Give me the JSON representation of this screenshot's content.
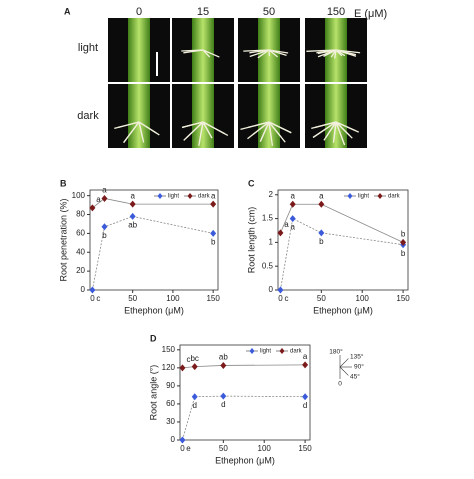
{
  "panel_a": {
    "panel_label": "A",
    "columns": [
      "0",
      "15",
      "50",
      "150"
    ],
    "unit": "E (μM)",
    "rows": [
      "light",
      "dark"
    ]
  },
  "chart_data": [
    {
      "type": "line",
      "panel_label": "B",
      "x_label": "Ethephon (μM)",
      "y_label": "Root penetration (%)",
      "x": [
        0,
        15,
        50,
        150
      ],
      "xlim": [
        -3,
        156
      ],
      "xticks": [
        0,
        50,
        100,
        150
      ],
      "ylim": [
        0,
        106
      ],
      "yticks": [
        0,
        20,
        40,
        60,
        80,
        100
      ],
      "series": [
        {
          "name": "light",
          "color": "#3b5bdb",
          "values": [
            0,
            67,
            78,
            60
          ],
          "letters": [
            "c",
            "b",
            "ab",
            "b"
          ]
        },
        {
          "name": "dark",
          "color": "#7b1a1a",
          "values": [
            87,
            97,
            91,
            91
          ],
          "letters": [
            "a",
            "a",
            "a",
            "a"
          ]
        }
      ]
    },
    {
      "type": "line",
      "panel_label": "C",
      "x_label": "Ethephon (μM)",
      "y_label": "Root length (cm)",
      "x": [
        0,
        15,
        50,
        150
      ],
      "xlim": [
        -3,
        156
      ],
      "xticks": [
        0,
        50,
        100,
        150
      ],
      "ylim": [
        0,
        2.1
      ],
      "yticks": [
        0,
        0.5,
        1,
        1.5,
        2
      ],
      "series": [
        {
          "name": "light",
          "color": "#3b5bdb",
          "values": [
            0,
            1.5,
            1.2,
            0.95
          ],
          "letters": [
            "c",
            "a",
            "b",
            "b"
          ]
        },
        {
          "name": "dark",
          "color": "#7b1a1a",
          "values": [
            1.2,
            1.8,
            1.8,
            1.0
          ],
          "letters": [
            "a",
            "a",
            "a",
            "b"
          ]
        }
      ]
    },
    {
      "type": "line",
      "panel_label": "D",
      "x_label": "Ethephon (μM)",
      "y_label": "Root angle (°)",
      "x": [
        0,
        15,
        50,
        150
      ],
      "xlim": [
        -3,
        156
      ],
      "xticks": [
        0,
        50,
        100,
        150
      ],
      "ylim": [
        0,
        158
      ],
      "yticks": [
        0,
        30,
        60,
        90,
        120,
        150
      ],
      "angle_key_labels": [
        "180°",
        "135°",
        "90°",
        "45°",
        "0"
      ],
      "series": [
        {
          "name": "light",
          "color": "#3b5bdb",
          "values": [
            0,
            72,
            73,
            72
          ],
          "letters": [
            "e",
            "d",
            "d",
            "d"
          ]
        },
        {
          "name": "dark",
          "color": "#7b1a1a",
          "values": [
            120,
            122,
            124,
            125
          ],
          "letters": [
            "c",
            "bc",
            "ab",
            "a"
          ]
        }
      ]
    }
  ]
}
